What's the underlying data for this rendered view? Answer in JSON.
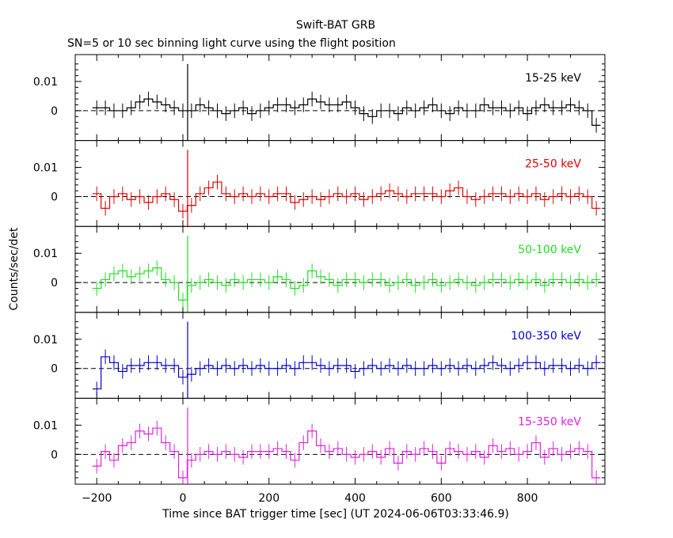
{
  "title": "Swift-BAT GRB",
  "subtitle": "SN=5 or 10 sec binning light curve using the flight position",
  "xlabel": "Time since BAT trigger time [sec] (UT 2024-06-06T03:33:46.9)",
  "ylabel": "Counts/sec/det",
  "chart_data": [
    {
      "type": "line",
      "band": "15-25 keV",
      "color": "#000000",
      "xlim": [
        -250,
        980
      ],
      "ylim": [
        -0.0102,
        0.0192
      ],
      "yticks": [
        0,
        0.01
      ],
      "ytick_labels": [
        "0",
        "0.01"
      ],
      "series": [
        {
          "name": "15-25 keV",
          "x": [
            -200,
            -180,
            -160,
            -140,
            -120,
            -100,
            -80,
            -60,
            -40,
            -20,
            0,
            20,
            40,
            60,
            80,
            100,
            120,
            140,
            160,
            180,
            200,
            220,
            240,
            260,
            280,
            300,
            320,
            340,
            360,
            380,
            400,
            420,
            440,
            460,
            480,
            500,
            520,
            540,
            560,
            580,
            600,
            620,
            640,
            660,
            680,
            700,
            720,
            740,
            760,
            780,
            800,
            820,
            840,
            860,
            880,
            900,
            920,
            940,
            960
          ],
          "y": [
            0.001,
            0.001,
            0,
            0,
            0.001,
            0.003,
            0.004,
            0.003,
            0.002,
            0.001,
            0,
            0,
            0.002,
            0.001,
            0,
            -0.001,
            0,
            0.001,
            -0.001,
            0,
            0.001,
            0.002,
            0.002,
            0.001,
            0.002,
            0.004,
            0.003,
            0.002,
            0.002,
            0.003,
            0.001,
            -0.001,
            -0.002,
            0,
            0,
            -0.001,
            0.001,
            0,
            0.001,
            0.002,
            0,
            -0.001,
            0.001,
            0,
            0,
            0.002,
            0.001,
            0.001,
            0,
            0.001,
            -0.001,
            0.001,
            0.002,
            0.001,
            0.001,
            0.002,
            0.001,
            0,
            -0.005
          ]
        }
      ]
    },
    {
      "type": "line",
      "band": "25-50 keV",
      "color": "#dd0000",
      "xlim": [
        -250,
        980
      ],
      "ylim": [
        -0.0102,
        0.0192
      ],
      "yticks": [
        0,
        0.01
      ],
      "ytick_labels": [
        "0",
        "0.01"
      ],
      "series": [
        {
          "name": "25-50 keV",
          "x": [
            -200,
            -180,
            -160,
            -140,
            -120,
            -100,
            -80,
            -60,
            -40,
            -20,
            0,
            20,
            40,
            60,
            80,
            100,
            120,
            140,
            160,
            180,
            200,
            220,
            240,
            260,
            280,
            300,
            320,
            340,
            360,
            380,
            400,
            420,
            440,
            460,
            480,
            500,
            520,
            540,
            560,
            580,
            600,
            620,
            640,
            660,
            680,
            700,
            720,
            740,
            760,
            780,
            800,
            820,
            840,
            860,
            880,
            900,
            920,
            940,
            960
          ],
          "y": [
            0.001,
            -0.004,
            0,
            0.001,
            -0.001,
            0,
            -0.002,
            0,
            0.001,
            -0.001,
            -0.005,
            -0.003,
            0.001,
            0.003,
            0.005,
            0.001,
            0,
            0.001,
            0,
            0.001,
            0,
            0.001,
            0.001,
            -0.002,
            -0.001,
            0,
            -0.001,
            0,
            0.001,
            0,
            0.001,
            -0.001,
            0,
            0.001,
            0.002,
            0.001,
            0,
            0.001,
            0.001,
            0.001,
            0,
            0.002,
            0.003,
            0,
            -0.001,
            0,
            0.001,
            0.001,
            0,
            0.001,
            0,
            0.001,
            -0.001,
            0,
            0.001,
            0,
            0.001,
            0,
            -0.004
          ]
        }
      ]
    },
    {
      "type": "line",
      "band": "50-100 keV",
      "color": "#22dd22",
      "xlim": [
        -250,
        980
      ],
      "ylim": [
        -0.0102,
        0.0192
      ],
      "yticks": [
        0,
        0.01
      ],
      "ytick_labels": [
        "0",
        "0.01"
      ],
      "series": [
        {
          "name": "50-100 keV",
          "x": [
            -200,
            -180,
            -160,
            -140,
            -120,
            -100,
            -80,
            -60,
            -40,
            -20,
            0,
            20,
            40,
            60,
            80,
            100,
            120,
            140,
            160,
            180,
            200,
            220,
            240,
            260,
            280,
            300,
            320,
            340,
            360,
            380,
            400,
            420,
            440,
            460,
            480,
            500,
            520,
            540,
            560,
            580,
            600,
            620,
            640,
            660,
            680,
            700,
            720,
            740,
            760,
            780,
            800,
            820,
            840,
            860,
            880,
            900,
            920,
            940,
            960
          ],
          "y": [
            -0.002,
            0.001,
            0.003,
            0.004,
            0.002,
            0.003,
            0.004,
            0.005,
            0.001,
            0,
            -0.006,
            -0.001,
            0,
            0.001,
            0,
            -0.001,
            0.001,
            0,
            0.001,
            0.001,
            0,
            0.002,
            0.001,
            -0.002,
            -0.001,
            0.004,
            0.002,
            0.001,
            -0.001,
            0.001,
            0.001,
            0,
            0.001,
            0.001,
            -0.001,
            0,
            0.001,
            -0.001,
            0,
            0.001,
            -0.001,
            0,
            0.001,
            0,
            -0.001,
            0,
            0.001,
            0.001,
            0,
            0.001,
            0,
            0.001,
            -0.001,
            0.001,
            0.001,
            0,
            0.001,
            0,
            0.001
          ]
        }
      ]
    },
    {
      "type": "line",
      "band": "100-350 keV",
      "color": "#0000cc",
      "xlim": [
        -250,
        980
      ],
      "ylim": [
        -0.0102,
        0.0192
      ],
      "yticks": [
        0,
        0.01
      ],
      "ytick_labels": [
        "0",
        "0.01"
      ],
      "series": [
        {
          "name": "100-350 keV",
          "x": [
            -200,
            -180,
            -160,
            -140,
            -120,
            -100,
            -80,
            -60,
            -40,
            -20,
            0,
            20,
            40,
            60,
            80,
            100,
            120,
            140,
            160,
            180,
            200,
            220,
            240,
            260,
            280,
            300,
            320,
            340,
            360,
            380,
            400,
            420,
            440,
            460,
            480,
            500,
            520,
            540,
            560,
            580,
            600,
            620,
            640,
            660,
            680,
            700,
            720,
            740,
            760,
            780,
            800,
            820,
            840,
            860,
            880,
            900,
            920,
            940,
            960
          ],
          "y": [
            -0.007,
            0.004,
            0.002,
            -0.001,
            0.001,
            0.001,
            0.002,
            0.002,
            0.001,
            0.001,
            -0.003,
            -0.002,
            0,
            0.001,
            0,
            0.001,
            0,
            0.001,
            0,
            0.001,
            0,
            0,
            0.001,
            0,
            0.002,
            0.002,
            0.001,
            0,
            0.001,
            0.001,
            -0.001,
            0,
            0.001,
            0,
            0.001,
            0,
            0.001,
            0,
            0,
            0.001,
            0,
            0.001,
            0,
            0.001,
            0,
            0.001,
            0.002,
            0.001,
            0,
            0.001,
            0.002,
            0.002,
            0,
            0.001,
            0.001,
            0,
            0.001,
            0,
            0.002
          ]
        }
      ]
    },
    {
      "type": "line",
      "band": "15-350 keV",
      "color": "#dd22dd",
      "xlim": [
        -250,
        980
      ],
      "ylim": [
        -0.0102,
        0.0192
      ],
      "yticks": [
        0,
        0.01
      ],
      "ytick_labels": [
        "0",
        "0.01"
      ],
      "xticks": [
        -200,
        0,
        200,
        400,
        600,
        800
      ],
      "xtick_labels": [
        "−200",
        "0",
        "200",
        "400",
        "600",
        "800"
      ],
      "series": [
        {
          "name": "15-350 keV",
          "x": [
            -200,
            -180,
            -160,
            -140,
            -120,
            -100,
            -80,
            -60,
            -40,
            -20,
            0,
            20,
            40,
            60,
            80,
            100,
            120,
            140,
            160,
            180,
            200,
            220,
            240,
            260,
            280,
            300,
            320,
            340,
            360,
            380,
            400,
            420,
            440,
            460,
            480,
            500,
            520,
            540,
            560,
            580,
            600,
            620,
            640,
            660,
            680,
            700,
            720,
            740,
            760,
            780,
            800,
            820,
            840,
            860,
            880,
            900,
            920,
            940,
            960
          ],
          "y": [
            -0.004,
            0.001,
            -0.002,
            0.003,
            0.004,
            0.008,
            0.007,
            0.009,
            0.004,
            0.001,
            -0.008,
            -0.002,
            0,
            0.001,
            0,
            0.001,
            0,
            -0.001,
            0.001,
            0.001,
            0.001,
            0.002,
            0.001,
            -0.002,
            0.004,
            0.008,
            0.003,
            0.001,
            0.002,
            0,
            -0.001,
            0,
            0.001,
            -0.001,
            0.002,
            -0.003,
            0.001,
            0,
            0.002,
            0.001,
            -0.003,
            0.002,
            0.001,
            0,
            0.001,
            -0.001,
            0.003,
            0.001,
            0.002,
            0,
            0.001,
            0.004,
            -0.001,
            0.002,
            0,
            0.001,
            0.002,
            0.001,
            -0.008
          ]
        }
      ]
    }
  ]
}
